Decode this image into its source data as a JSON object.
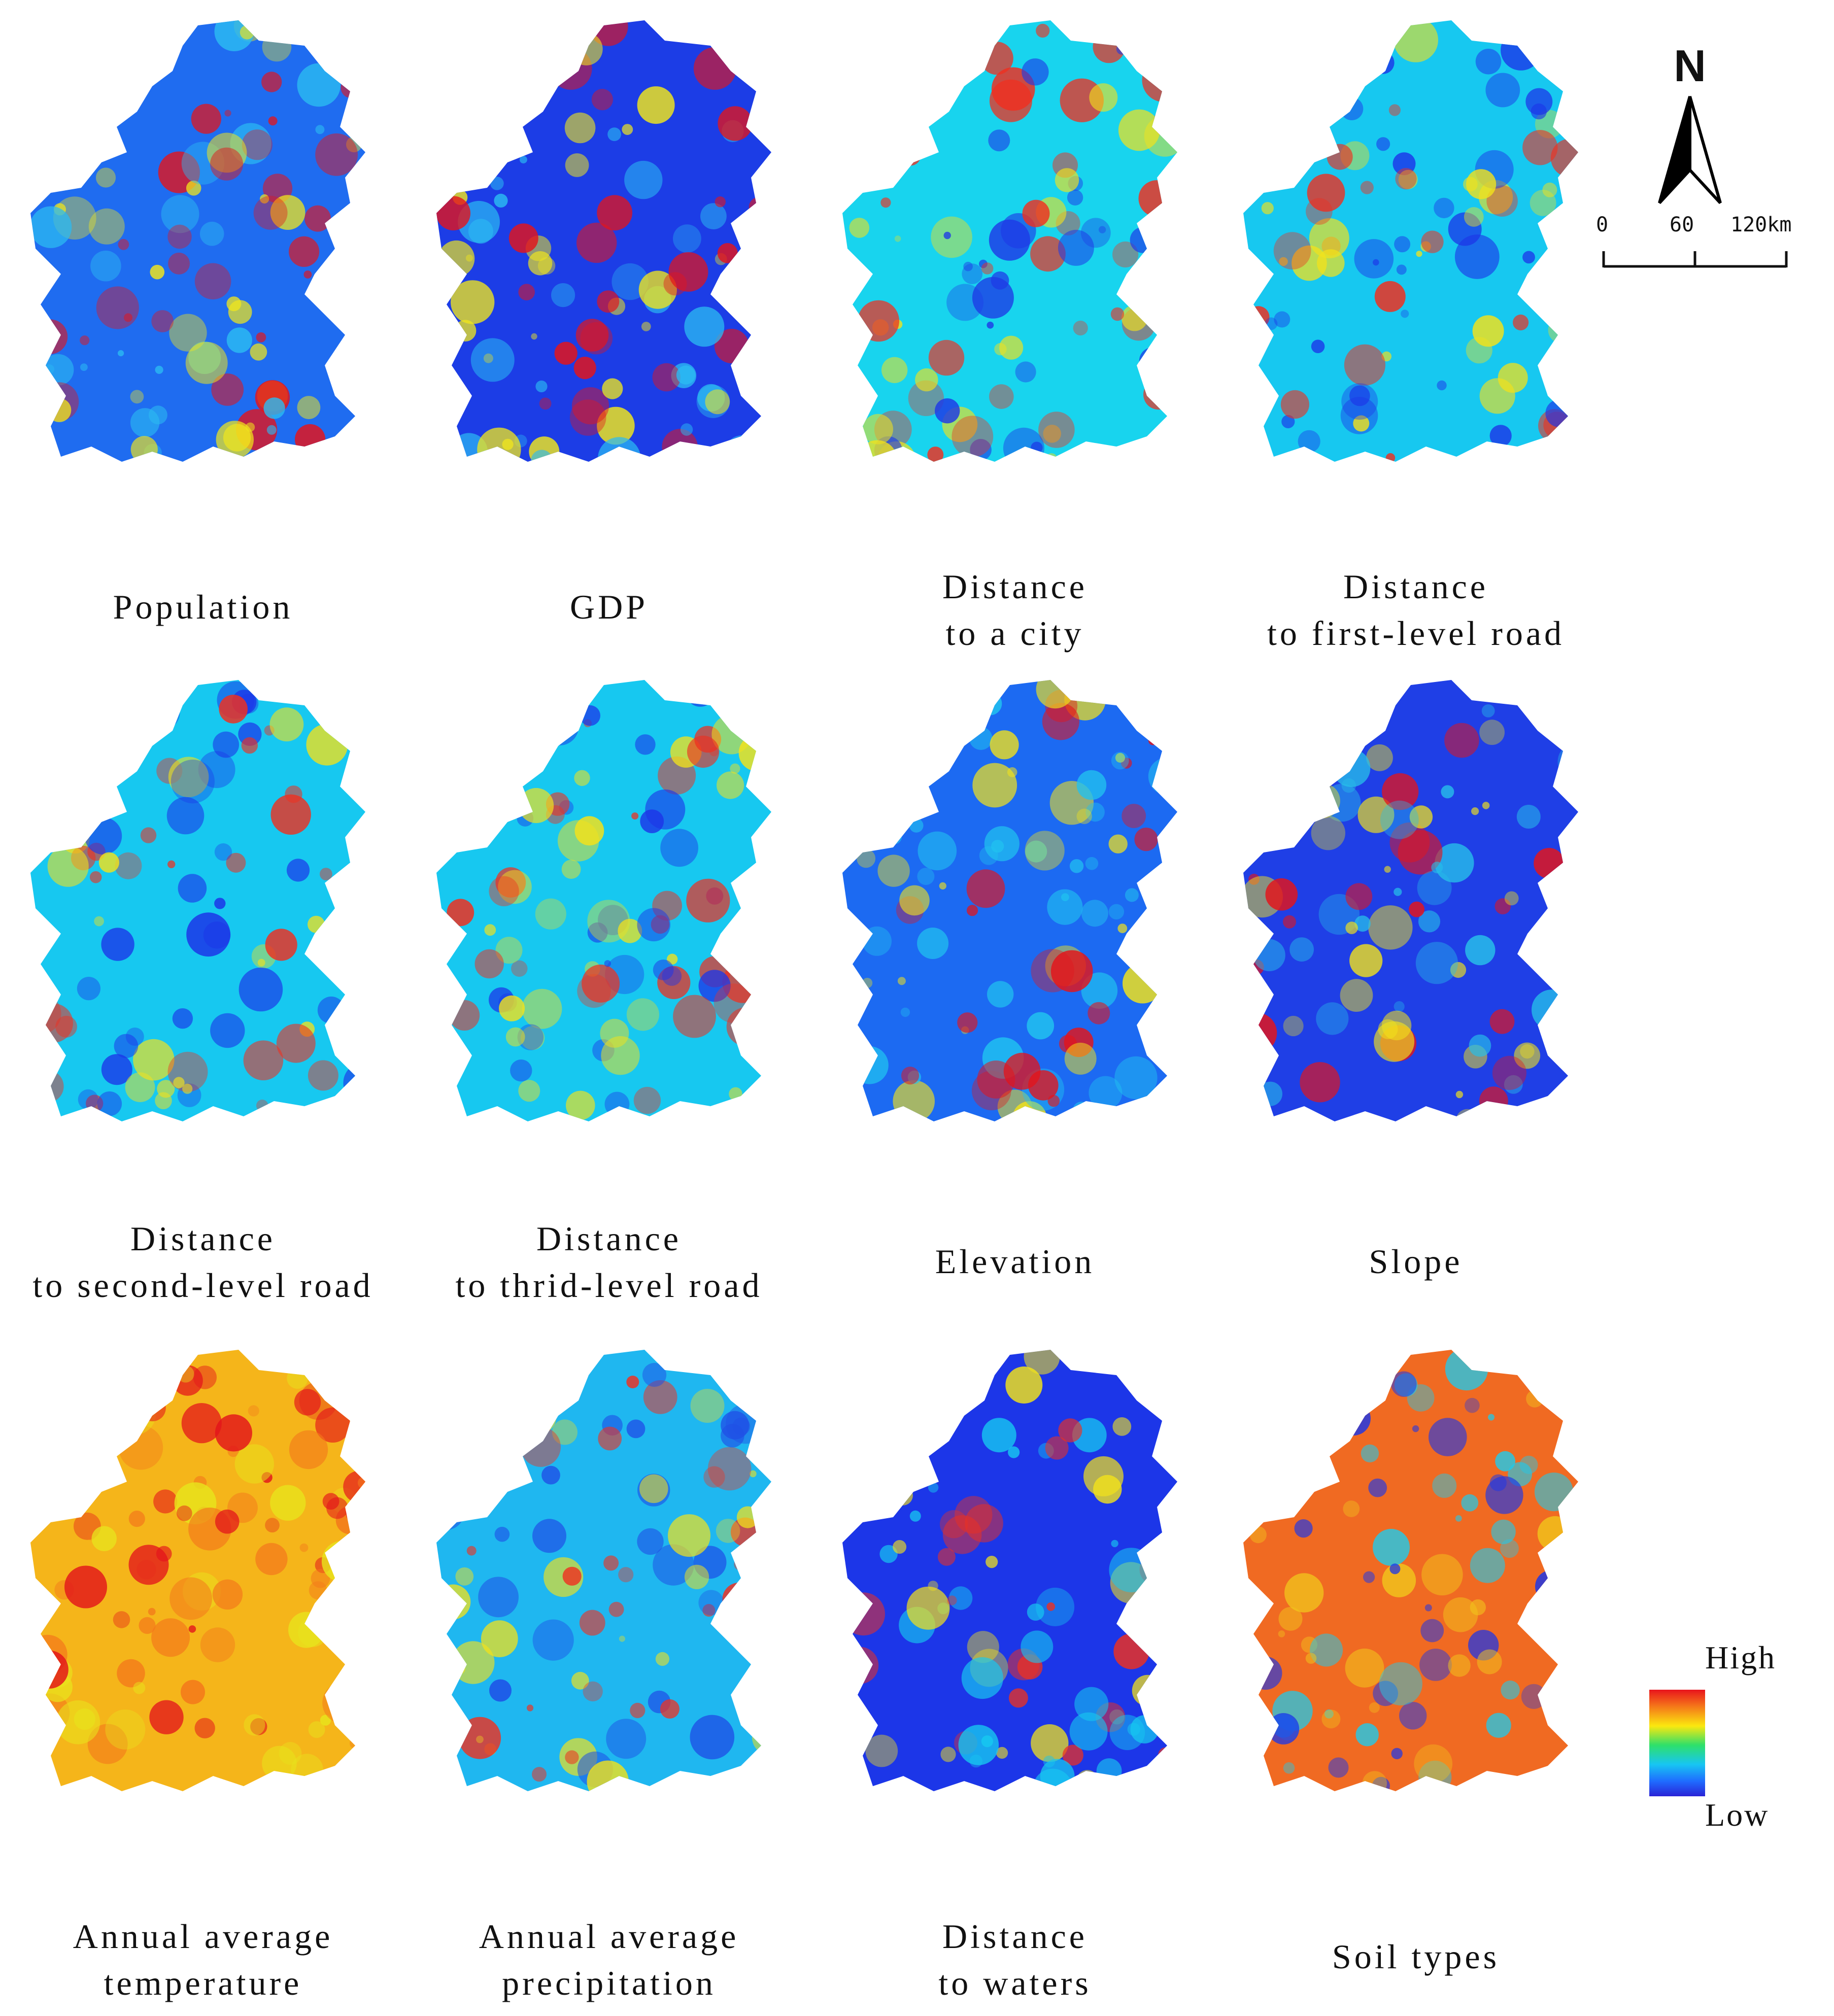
{
  "panels": [
    {
      "label_lines": [
        "Population"
      ],
      "colors": [
        "#1f6cf0",
        "#2bbaf2",
        "#e3141b",
        "#f0e61c"
      ]
    },
    {
      "label_lines": [
        "GDP"
      ],
      "colors": [
        "#1c3de6",
        "#2bbaf2",
        "#e3141b",
        "#f0e61c"
      ]
    },
    {
      "label_lines": [
        "Distance",
        "to a city"
      ],
      "colors": [
        "#18d4ee",
        "#1e3ae6",
        "#f2e21b",
        "#ef3020"
      ]
    },
    {
      "label_lines": [
        "Distance",
        "to first-level road"
      ],
      "colors": [
        "#17c8f0",
        "#1c36e8",
        "#f2e21b",
        "#ee3020"
      ]
    },
    {
      "label_lines": [
        "Distance",
        "to second-level road"
      ],
      "colors": [
        "#17c8f0",
        "#1c36e8",
        "#f2e21b",
        "#ee3020"
      ]
    },
    {
      "label_lines": [
        "Distance",
        "to thrid-level road"
      ],
      "colors": [
        "#17c8f0",
        "#1c36e8",
        "#f2e21b",
        "#ee3020"
      ]
    },
    {
      "label_lines": [
        "Elevation"
      ],
      "colors": [
        "#1c6af2",
        "#21c2f0",
        "#f2e21b",
        "#e3141b"
      ]
    },
    {
      "label_lines": [
        "Slope"
      ],
      "colors": [
        "#1f3fe6",
        "#27bfe9",
        "#f2e21b",
        "#e3141b"
      ]
    },
    {
      "label_lines": [
        "Annual average",
        "temperature"
      ],
      "colors": [
        "#f5b51a",
        "#f3761b",
        "#e8e41c",
        "#e3141b"
      ]
    },
    {
      "label_lines": [
        "Annual average",
        "precipitation"
      ],
      "colors": [
        "#1fb7f0",
        "#1f4fe6",
        "#f2e21b",
        "#ef3020"
      ]
    },
    {
      "label_lines": [
        "Distance",
        "to waters"
      ],
      "colors": [
        "#1c36e8",
        "#17c8f0",
        "#f2e21b",
        "#ee3020"
      ]
    },
    {
      "label_lines": [
        "Soil types"
      ],
      "colors": [
        "#f06a22",
        "#f1c51c",
        "#22c9e8",
        "#1c36e8"
      ]
    }
  ],
  "north_arrow": {
    "letter": "N"
  },
  "scale_bar": {
    "labels": [
      "0",
      "60",
      "120km"
    ]
  },
  "legend": {
    "high_label": "High",
    "low_label": "Low"
  }
}
